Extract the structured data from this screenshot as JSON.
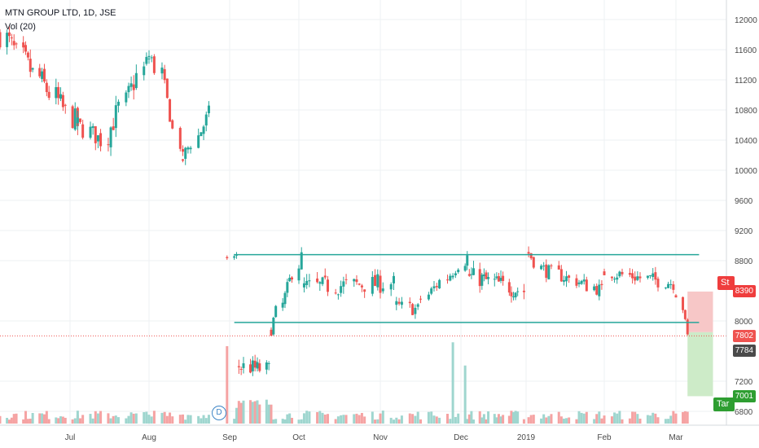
{
  "header": {
    "symbol_line": "MTN GROUP LTD, 1D, JSE",
    "indicator_line": "Vol (20)"
  },
  "price_tags": {
    "stop": "8390",
    "last": "7802",
    "prev": "7784",
    "target": "7001"
  },
  "side_labels": {
    "stop": "St",
    "target": "Tar"
  },
  "event_marker": "D",
  "colors": {
    "up": "#26a69a",
    "down": "#ef5350",
    "vol_up": "#9fd6cf",
    "vol_down": "#f5a3a3",
    "level_line": "#26a69a",
    "stop_fill": "#f7c7c7",
    "target_fill": "#cdebc8",
    "stop_tag": "#ef3d3d",
    "target_tag": "#2e9e31",
    "prev_tag": "#4a4a4a",
    "last_tag": "#ef5350"
  },
  "chart_data": {
    "type": "candlestick",
    "title": "MTN GROUP LTD, 1D, JSE",
    "y_axis": {
      "ticks": [
        12000,
        11600,
        11200,
        10800,
        10400,
        10000,
        9600,
        9200,
        8800,
        8000,
        7200,
        6800
      ],
      "ylim": [
        6500,
        12300
      ]
    },
    "x_axis": {
      "ticks": [
        "Jul",
        "Aug",
        "Sep",
        "Oct",
        "Nov",
        "Dec",
        "2019",
        "Feb",
        "Mar"
      ],
      "range": [
        "2018-06-01",
        "2019-03-20"
      ]
    },
    "levels": [
      {
        "name": "range-high",
        "value": 8880,
        "from": "2018-09-03",
        "to": "2019-03-11"
      },
      {
        "name": "range-low",
        "value": 7980,
        "from": "2018-09-03",
        "to": "2019-03-11"
      }
    ],
    "risk_reward": {
      "entry": 7850,
      "stop": 8390,
      "target": 7001,
      "from": "2019-03-06",
      "to": "2019-03-17"
    },
    "last_price": 7802,
    "previous_close": 7784,
    "volume_indicator": "Vol (20)",
    "segments": [
      {
        "from": "2018-06-01",
        "to": "2018-07-04",
        "start": 11800,
        "end": 10600,
        "amp": 260
      },
      {
        "from": "2018-07-04",
        "to": "2018-07-13",
        "start": 10600,
        "end": 10400,
        "amp": 200
      },
      {
        "from": "2018-07-13",
        "to": "2018-08-01",
        "start": 10400,
        "end": 11500,
        "amp": 250
      },
      {
        "from": "2018-08-01",
        "to": "2018-08-06",
        "start": 11500,
        "end": 11300,
        "amp": 200
      },
      {
        "from": "2018-08-06",
        "to": "2018-08-14",
        "start": 11300,
        "end": 10150,
        "amp": 150
      },
      {
        "from": "2018-08-14",
        "to": "2018-08-24",
        "start": 10150,
        "end": 10750,
        "amp": 180
      },
      {
        "from": "2018-08-31",
        "to": "2018-09-04",
        "start": 8850,
        "end": 8850,
        "amp": 90
      },
      {
        "from": "2018-09-05",
        "to": "2018-09-18",
        "start": 7400,
        "end": 7350,
        "amp": 180
      },
      {
        "from": "2018-09-19",
        "to": "2018-10-02",
        "start": 7900,
        "end": 8850,
        "amp": 150
      },
      {
        "from": "2018-10-03",
        "to": "2018-11-06",
        "start": 8450,
        "end": 8500,
        "amp": 200
      },
      {
        "from": "2018-11-07",
        "to": "2018-11-15",
        "start": 8200,
        "end": 8150,
        "amp": 150
      },
      {
        "from": "2018-11-16",
        "to": "2018-12-04",
        "start": 8300,
        "end": 8850,
        "amp": 150
      },
      {
        "from": "2018-12-05",
        "to": "2018-12-31",
        "start": 8600,
        "end": 8400,
        "amp": 200
      },
      {
        "from": "2019-01-02",
        "to": "2019-01-04",
        "start": 8900,
        "end": 8800,
        "amp": 150
      },
      {
        "from": "2019-01-07",
        "to": "2019-01-31",
        "start": 8700,
        "end": 8400,
        "amp": 150
      },
      {
        "from": "2019-02-01",
        "to": "2019-02-28",
        "start": 8650,
        "end": 8500,
        "amp": 150
      },
      {
        "from": "2019-03-01",
        "to": "2019-03-06",
        "start": 8350,
        "end": 7800,
        "amp": 80
      }
    ],
    "volume_spikes": [
      {
        "date": "2018-08-31",
        "volume": 1.0
      },
      {
        "date": "2018-11-28",
        "volume": 1.05
      },
      {
        "date": "2018-12-03",
        "volume": 0.75
      }
    ]
  }
}
